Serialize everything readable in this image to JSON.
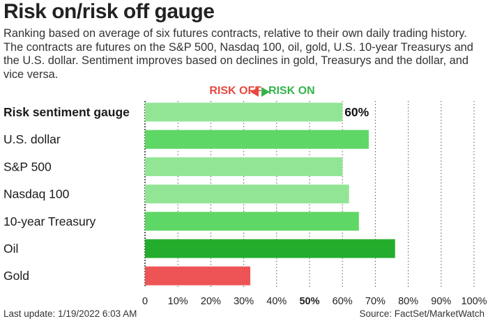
{
  "title": "Risk on/risk off gauge",
  "subtitle": "Ranking based on average of six futures contracts, relative to their own daily trading history. The contracts are futures on the S&P 500, Nasdaq 100, oil, gold, U.S. 10-year Treasurys and the U.S. dollar. Sentiment improves based on declines in gold, Treasurys and the dollar, and vice versa.",
  "legend": {
    "risk_off": "RISK OFF",
    "risk_on": "RISK ON"
  },
  "footer": {
    "last_update": "Last update: 1/19/2022 6:03 AM",
    "source": "Source: FactSet/MarketWatch"
  },
  "colors": {
    "light_green": "#93e596",
    "medium_green": "#5fd766",
    "dark_green": "#24ad2c",
    "red": "#ee5455"
  },
  "chart_data": {
    "type": "bar",
    "orientation": "horizontal",
    "categories": [
      "Risk sentiment gauge",
      "U.S. dollar",
      "S&P 500",
      "Nasdaq 100",
      "10-year Treasury",
      "Oil",
      "Gold"
    ],
    "values": [
      60,
      68,
      60,
      62,
      65,
      76,
      32
    ],
    "bar_colors": [
      "#93e596",
      "#5fd766",
      "#93e596",
      "#93e596",
      "#5fd766",
      "#24ad2c",
      "#ee5455"
    ],
    "bold_categories": [
      "Risk sentiment gauge"
    ],
    "value_labels": {
      "Risk sentiment gauge": "60%"
    },
    "xlim": [
      0,
      100
    ],
    "xticks": [
      "0",
      "10%",
      "20%",
      "30%",
      "40%",
      "50%",
      "60%",
      "70%",
      "80%",
      "90%",
      "100%"
    ],
    "bold_ticks": [
      "50%"
    ],
    "grid": true
  }
}
